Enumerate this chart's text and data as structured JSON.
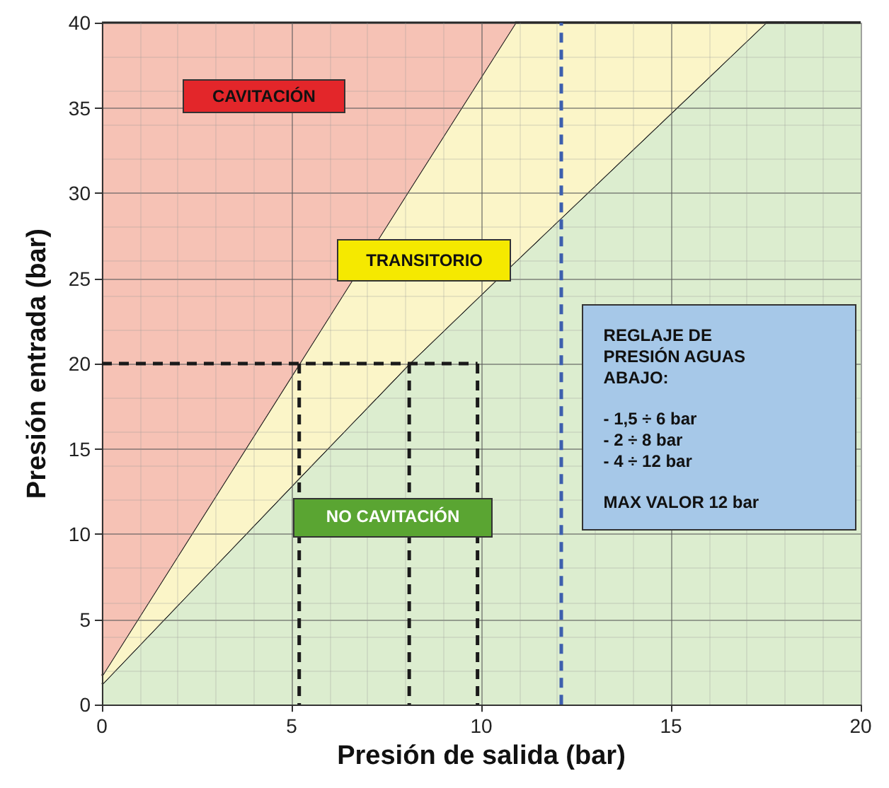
{
  "chart_data": {
    "type": "area",
    "stacked": true,
    "xlabel": "Presión de salida (bar)",
    "ylabel": "Presión entrada (bar)",
    "xlim": [
      0,
      20
    ],
    "xticks": [
      0,
      5,
      10,
      15,
      20
    ],
    "ylim": [
      0,
      40
    ],
    "yticks": [
      0,
      5,
      10,
      15,
      20,
      25,
      30,
      35,
      40
    ],
    "grid": true,
    "x": [
      0,
      5.2,
      8.1,
      10.9,
      17.5,
      20
    ],
    "series": [
      {
        "color": "#dcedcf",
        "values": [
          1.2,
          13.3,
          20,
          26,
          40,
          40
        ]
      },
      {
        "color": "#fbf5c8",
        "values": [
          0.5,
          6.7,
          10.2,
          14,
          0,
          0
        ]
      },
      {
        "color": "#f6c2b5",
        "values": [
          38.3,
          20,
          9.8,
          0,
          0,
          0
        ]
      },
      {
        "type": "line",
        "color": "#1a1a1a",
        "line_style": "dashed",
        "x": [
          0,
          9.9
        ],
        "values": [
          20,
          20
        ]
      },
      {
        "type": "line",
        "color": "#1a1a1a",
        "line_style": "dashed",
        "x": [
          5.2,
          5.2
        ],
        "values": [
          20,
          0
        ]
      },
      {
        "type": "line",
        "color": "#1a1a1a",
        "line_style": "dashed",
        "x": [
          8.1,
          8.1
        ],
        "values": [
          20,
          0
        ]
      },
      {
        "type": "line",
        "color": "#1a1a1a",
        "line_style": "dashed",
        "x": [
          9.9,
          9.9
        ],
        "values": [
          20,
          0
        ]
      }
    ],
    "ref_lines": [
      {
        "axis": "x",
        "value": 12.1,
        "color": "#3d5fae",
        "line_style": "dashed"
      }
    ],
    "annotations": [
      "CAVITACIÓN",
      "TRANSITORIO",
      "NO CAVITACIÓN",
      "REGLAJE DE PRESIÓN AGUAS ABAJO:",
      "- 1,5 ÷ 6 bar",
      "- 2 ÷ 8 bar",
      "- 4 ÷ 12 bar",
      "MAX VALOR 12 bar"
    ]
  }
}
